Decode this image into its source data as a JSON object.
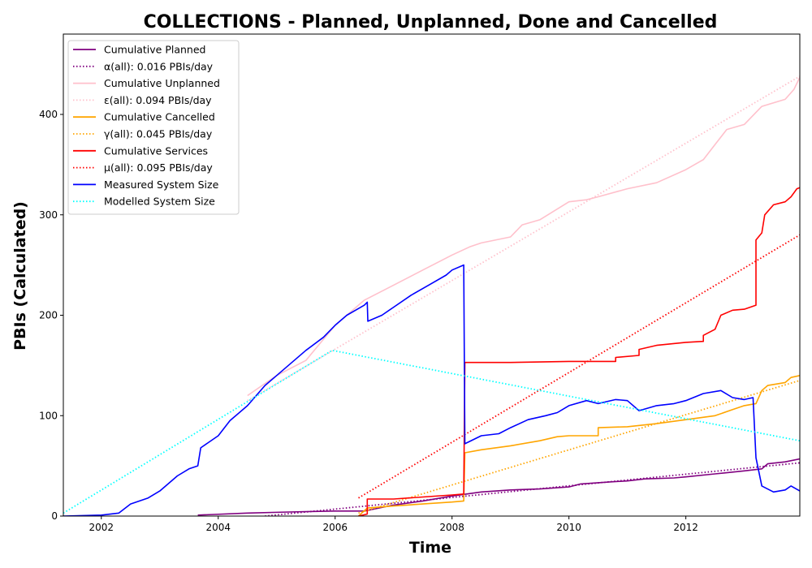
{
  "chart_data": {
    "type": "line",
    "title": "COLLECTIONS - Planned, Unplanned, Done  and Cancelled",
    "xlabel": "Time",
    "ylabel": "PBIs (Calculated)",
    "xlim": [
      2001.35,
      2013.95
    ],
    "ylim": [
      0,
      480
    ],
    "xticks": [
      2002,
      2004,
      2006,
      2008,
      2010,
      2012
    ],
    "yticks": [
      0,
      100,
      200,
      300,
      400
    ],
    "grid": false,
    "legend_position": "top-left",
    "series": [
      {
        "name": "Cumulative Planned",
        "color": "#800080",
        "style": "solid",
        "points": [
          [
            2003.65,
            1
          ],
          [
            2004.5,
            3
          ],
          [
            2005.2,
            4
          ],
          [
            2006.0,
            5
          ],
          [
            2006.5,
            5
          ],
          [
            2007.0,
            11
          ],
          [
            2007.5,
            15
          ],
          [
            2008.0,
            20
          ],
          [
            2008.5,
            24
          ],
          [
            2009.0,
            26
          ],
          [
            2009.5,
            27
          ],
          [
            2010.0,
            29
          ],
          [
            2010.2,
            32
          ],
          [
            2010.7,
            34
          ],
          [
            2011.0,
            35
          ],
          [
            2011.3,
            37
          ],
          [
            2011.8,
            38
          ],
          [
            2012.0,
            39
          ],
          [
            2012.5,
            42
          ],
          [
            2013.0,
            45
          ],
          [
            2013.3,
            47
          ],
          [
            2013.4,
            52
          ],
          [
            2013.7,
            54
          ],
          [
            2013.95,
            57
          ]
        ]
      },
      {
        "name": "α(all): 0.016 PBIs/day",
        "color": "#800080",
        "style": "dotted",
        "points": [
          [
            2004.8,
            0
          ],
          [
            2013.95,
            53
          ]
        ]
      },
      {
        "name": "Cumulative Unplanned",
        "color": "#ffc0cb",
        "style": "solid",
        "points": [
          [
            2004.5,
            120
          ],
          [
            2005.0,
            140
          ],
          [
            2005.5,
            155
          ],
          [
            2006.0,
            190
          ],
          [
            2006.5,
            215
          ],
          [
            2007.0,
            230
          ],
          [
            2007.5,
            245
          ],
          [
            2008.0,
            260
          ],
          [
            2008.3,
            268
          ],
          [
            2008.5,
            272
          ],
          [
            2009.0,
            278
          ],
          [
            2009.2,
            290
          ],
          [
            2009.5,
            295
          ],
          [
            2010.0,
            313
          ],
          [
            2010.3,
            315
          ],
          [
            2010.5,
            318
          ],
          [
            2011.0,
            326
          ],
          [
            2011.5,
            332
          ],
          [
            2012.0,
            345
          ],
          [
            2012.3,
            355
          ],
          [
            2012.5,
            370
          ],
          [
            2012.7,
            385
          ],
          [
            2013.0,
            390
          ],
          [
            2013.3,
            408
          ],
          [
            2013.7,
            415
          ],
          [
            2013.85,
            425
          ],
          [
            2013.95,
            437
          ]
        ]
      },
      {
        "name": "ε(all): 0.094 PBIs/day",
        "color": "#ffc0cb",
        "style": "dotted",
        "points": [
          [
            2004.5,
            115
          ],
          [
            2013.95,
            438
          ]
        ]
      },
      {
        "name": "Cumulative Cancelled",
        "color": "#ffa500",
        "style": "solid",
        "points": [
          [
            2006.4,
            0
          ],
          [
            2006.55,
            8
          ],
          [
            2007.0,
            10
          ],
          [
            2007.5,
            12
          ],
          [
            2008.0,
            14
          ],
          [
            2008.2,
            15
          ],
          [
            2008.22,
            63
          ],
          [
            2008.5,
            66
          ],
          [
            2009.0,
            70
          ],
          [
            2009.5,
            75
          ],
          [
            2009.8,
            79
          ],
          [
            2010.0,
            80
          ],
          [
            2010.5,
            80
          ],
          [
            2010.5,
            88
          ],
          [
            2011.0,
            89
          ],
          [
            2011.5,
            92
          ],
          [
            2012.0,
            96
          ],
          [
            2012.5,
            100
          ],
          [
            2012.8,
            106
          ],
          [
            2013.0,
            110
          ],
          [
            2013.2,
            112
          ],
          [
            2013.3,
            125
          ],
          [
            2013.4,
            130
          ],
          [
            2013.7,
            133
          ],
          [
            2013.8,
            138
          ],
          [
            2013.95,
            140
          ]
        ]
      },
      {
        "name": "γ(all): 0.045 PBIs/day",
        "color": "#ffa500",
        "style": "dotted",
        "points": [
          [
            2006.4,
            3
          ],
          [
            2013.95,
            135
          ]
        ]
      },
      {
        "name": "Cumulative Services",
        "color": "#ff0000",
        "style": "solid",
        "points": [
          [
            2006.4,
            0
          ],
          [
            2006.55,
            2
          ],
          [
            2006.55,
            17
          ],
          [
            2007.0,
            17
          ],
          [
            2007.5,
            19
          ],
          [
            2008.0,
            21
          ],
          [
            2008.2,
            22
          ],
          [
            2008.22,
            153
          ],
          [
            2009.0,
            153
          ],
          [
            2010.0,
            154
          ],
          [
            2010.8,
            154
          ],
          [
            2010.8,
            158
          ],
          [
            2011.2,
            160
          ],
          [
            2011.2,
            166
          ],
          [
            2011.5,
            170
          ],
          [
            2012.0,
            173
          ],
          [
            2012.3,
            174
          ],
          [
            2012.3,
            180
          ],
          [
            2012.5,
            186
          ],
          [
            2012.6,
            200
          ],
          [
            2012.8,
            205
          ],
          [
            2013.0,
            206
          ],
          [
            2013.2,
            210
          ],
          [
            2013.2,
            275
          ],
          [
            2013.3,
            282
          ],
          [
            2013.35,
            300
          ],
          [
            2013.5,
            310
          ],
          [
            2013.7,
            313
          ],
          [
            2013.8,
            318
          ],
          [
            2013.9,
            326
          ],
          [
            2013.95,
            327
          ]
        ]
      },
      {
        "name": "μ(all): 0.095 PBIs/day",
        "color": "#ff0000",
        "style": "dotted",
        "points": [
          [
            2006.4,
            18
          ],
          [
            2013.95,
            280
          ]
        ]
      },
      {
        "name": "Measured System Size",
        "color": "#0000ff",
        "style": "solid",
        "points": [
          [
            2001.35,
            0
          ],
          [
            2002.0,
            1
          ],
          [
            2002.3,
            3
          ],
          [
            2002.5,
            12
          ],
          [
            2002.8,
            18
          ],
          [
            2003.0,
            25
          ],
          [
            2003.3,
            40
          ],
          [
            2003.5,
            47
          ],
          [
            2003.65,
            50
          ],
          [
            2003.7,
            68
          ],
          [
            2004.0,
            80
          ],
          [
            2004.2,
            95
          ],
          [
            2004.5,
            110
          ],
          [
            2004.8,
            130
          ],
          [
            2005.0,
            140
          ],
          [
            2005.5,
            165
          ],
          [
            2005.8,
            178
          ],
          [
            2006.0,
            190
          ],
          [
            2006.2,
            200
          ],
          [
            2006.5,
            210
          ],
          [
            2006.55,
            213
          ],
          [
            2006.56,
            194
          ],
          [
            2006.8,
            200
          ],
          [
            2007.0,
            208
          ],
          [
            2007.3,
            220
          ],
          [
            2007.6,
            230
          ],
          [
            2007.9,
            240
          ],
          [
            2008.0,
            245
          ],
          [
            2008.2,
            250
          ],
          [
            2008.22,
            72
          ],
          [
            2008.5,
            80
          ],
          [
            2008.8,
            82
          ],
          [
            2009.0,
            88
          ],
          [
            2009.3,
            96
          ],
          [
            2009.6,
            100
          ],
          [
            2009.8,
            103
          ],
          [
            2010.0,
            110
          ],
          [
            2010.3,
            115
          ],
          [
            2010.5,
            112
          ],
          [
            2010.8,
            116
          ],
          [
            2011.0,
            115
          ],
          [
            2011.2,
            105
          ],
          [
            2011.5,
            110
          ],
          [
            2011.8,
            112
          ],
          [
            2012.0,
            115
          ],
          [
            2012.3,
            122
          ],
          [
            2012.6,
            125
          ],
          [
            2012.8,
            118
          ],
          [
            2013.0,
            116
          ],
          [
            2013.15,
            118
          ],
          [
            2013.2,
            58
          ],
          [
            2013.3,
            30
          ],
          [
            2013.5,
            24
          ],
          [
            2013.7,
            26
          ],
          [
            2013.8,
            30
          ],
          [
            2013.95,
            25
          ]
        ]
      },
      {
        "name": "Modelled System Size",
        "color": "#00ffff",
        "style": "dotted",
        "points": [
          [
            2001.35,
            3
          ],
          [
            2005.95,
            165
          ],
          [
            2013.95,
            75
          ]
        ]
      }
    ]
  }
}
